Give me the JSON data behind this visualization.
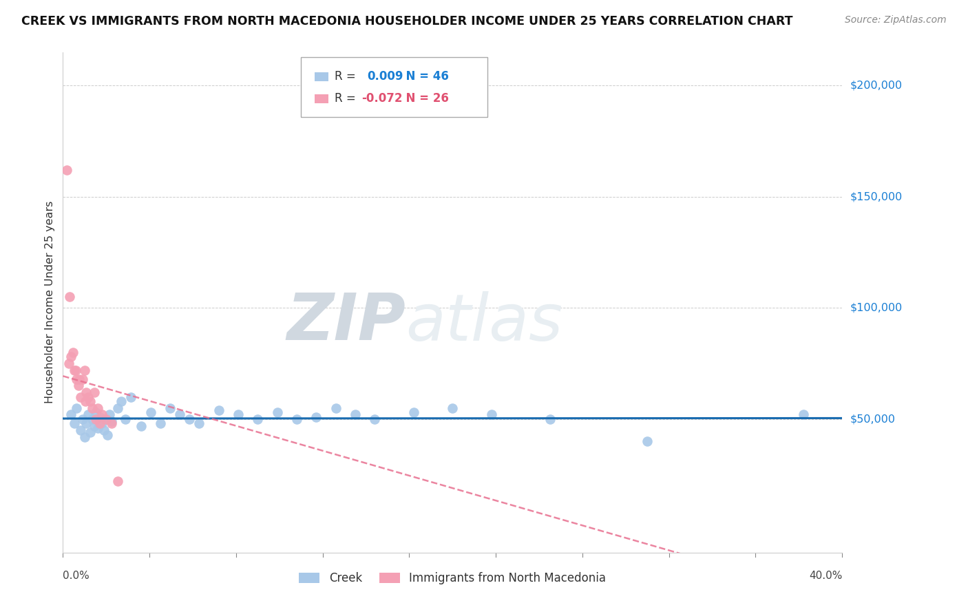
{
  "title": "CREEK VS IMMIGRANTS FROM NORTH MACEDONIA HOUSEHOLDER INCOME UNDER 25 YEARS CORRELATION CHART",
  "source": "Source: ZipAtlas.com",
  "ylabel": "Householder Income Under 25 years",
  "xmin": 0.0,
  "xmax": 40.0,
  "ymin": -10000,
  "ymax": 215000,
  "creek_R": 0.009,
  "creek_N": 46,
  "immig_R": -0.072,
  "immig_N": 26,
  "creek_color": "#a8c8e8",
  "immig_color": "#f4a0b4",
  "creek_line_color": "#1a6cb0",
  "immig_line_color": "#e87090",
  "ytick_vals": [
    50000,
    100000,
    150000,
    200000
  ],
  "ytick_labels": [
    "$50,000",
    "$100,000",
    "$150,000",
    "$200,000"
  ],
  "watermark_zip": "ZIP",
  "watermark_atlas": "atlas",
  "creek_label": "Creek",
  "immig_label": "Immigrants from North Macedonia",
  "creek_x": [
    0.4,
    0.6,
    0.7,
    0.9,
    1.0,
    1.1,
    1.2,
    1.3,
    1.4,
    1.5,
    1.6,
    1.7,
    1.8,
    1.9,
    2.0,
    2.1,
    2.2,
    2.3,
    2.4,
    2.5,
    2.8,
    3.0,
    3.2,
    3.5,
    4.0,
    4.5,
    5.0,
    5.5,
    6.0,
    6.5,
    7.0,
    8.0,
    9.0,
    10.0,
    11.0,
    12.0,
    13.0,
    14.0,
    15.0,
    16.0,
    18.0,
    20.0,
    22.0,
    25.0,
    30.0,
    38.0
  ],
  "creek_y": [
    52000,
    48000,
    55000,
    45000,
    50000,
    42000,
    48000,
    52000,
    44000,
    50000,
    47000,
    53000,
    46000,
    51000,
    48000,
    45000,
    50000,
    43000,
    52000,
    49000,
    55000,
    58000,
    50000,
    60000,
    47000,
    53000,
    48000,
    55000,
    52000,
    50000,
    48000,
    54000,
    52000,
    50000,
    53000,
    50000,
    51000,
    55000,
    52000,
    50000,
    53000,
    55000,
    52000,
    50000,
    40000,
    52000
  ],
  "immig_x": [
    0.2,
    0.3,
    0.4,
    0.5,
    0.6,
    0.7,
    0.8,
    0.9,
    1.0,
    1.1,
    1.2,
    1.3,
    1.4,
    1.5,
    1.6,
    1.7,
    1.8,
    1.9,
    2.0,
    2.2,
    2.5,
    0.35,
    0.65,
    0.85,
    1.15,
    2.8
  ],
  "immig_y": [
    162000,
    75000,
    78000,
    80000,
    72000,
    68000,
    65000,
    60000,
    68000,
    72000,
    62000,
    60000,
    58000,
    55000,
    62000,
    50000,
    55000,
    48000,
    52000,
    50000,
    48000,
    105000,
    72000,
    68000,
    58000,
    22000
  ]
}
